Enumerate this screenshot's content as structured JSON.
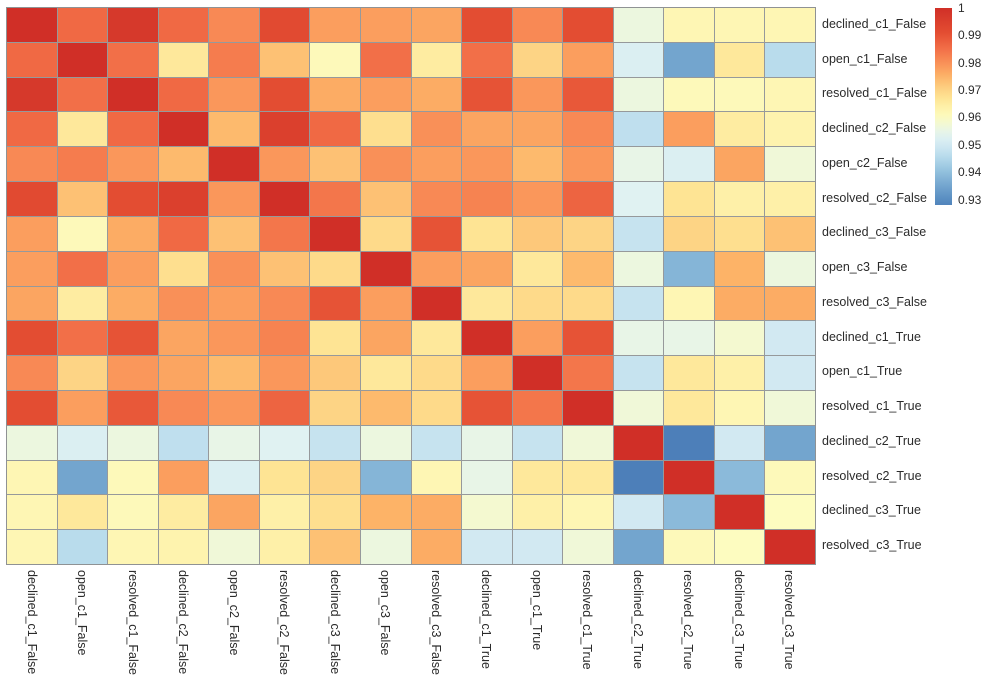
{
  "figure": {
    "background": "#ffffff",
    "grid_line_color": "#96999b",
    "label_color": "#2b2b2b"
  },
  "chart_data": {
    "type": "heatmap",
    "title": "",
    "xlabel": "",
    "ylabel": "",
    "categories": [
      "declined_c1_False",
      "open_c1_False",
      "resolved_c1_False",
      "declined_c2_False",
      "open_c2_False",
      "resolved_c2_False",
      "declined_c3_False",
      "open_c3_False",
      "resolved_c3_False",
      "declined_c1_True",
      "open_c1_True",
      "resolved_c1_True",
      "declined_c2_True",
      "resolved_c2_True",
      "declined_c3_True",
      "resolved_c3_True"
    ],
    "matrix": [
      [
        1.0,
        0.986,
        0.997,
        0.986,
        0.981,
        0.992,
        0.978,
        0.978,
        0.977,
        0.991,
        0.981,
        0.991,
        0.956,
        0.962,
        0.962,
        0.962
      ],
      [
        0.986,
        1.0,
        0.985,
        0.966,
        0.983,
        0.973,
        0.961,
        0.985,
        0.965,
        0.985,
        0.97,
        0.978,
        0.952,
        0.935,
        0.966,
        0.946
      ],
      [
        0.997,
        0.985,
        1.0,
        0.986,
        0.979,
        0.991,
        0.976,
        0.978,
        0.976,
        0.99,
        0.979,
        0.989,
        0.956,
        0.961,
        0.961,
        0.962
      ],
      [
        0.986,
        0.966,
        0.986,
        1.0,
        0.974,
        0.995,
        0.986,
        0.968,
        0.98,
        0.977,
        0.977,
        0.981,
        0.947,
        0.978,
        0.965,
        0.963
      ],
      [
        0.981,
        0.983,
        0.979,
        0.974,
        1.0,
        0.979,
        0.973,
        0.98,
        0.978,
        0.979,
        0.974,
        0.979,
        0.955,
        0.952,
        0.977,
        0.957
      ],
      [
        0.992,
        0.973,
        0.991,
        0.995,
        0.979,
        1.0,
        0.984,
        0.973,
        0.981,
        0.982,
        0.979,
        0.987,
        0.953,
        0.967,
        0.964,
        0.964
      ],
      [
        0.978,
        0.961,
        0.976,
        0.986,
        0.973,
        0.984,
        1.0,
        0.969,
        0.99,
        0.967,
        0.972,
        0.97,
        0.948,
        0.97,
        0.968,
        0.973
      ],
      [
        0.978,
        0.985,
        0.978,
        0.968,
        0.98,
        0.973,
        0.969,
        1.0,
        0.978,
        0.977,
        0.966,
        0.974,
        0.956,
        0.938,
        0.975,
        0.956
      ],
      [
        0.977,
        0.965,
        0.976,
        0.98,
        0.978,
        0.981,
        0.99,
        0.978,
        1.0,
        0.966,
        0.969,
        0.969,
        0.948,
        0.962,
        0.976,
        0.976
      ],
      [
        0.991,
        0.985,
        0.99,
        0.977,
        0.979,
        0.982,
        0.967,
        0.977,
        0.966,
        1.0,
        0.978,
        0.99,
        0.955,
        0.955,
        0.958,
        0.95
      ],
      [
        0.981,
        0.97,
        0.979,
        0.977,
        0.974,
        0.979,
        0.972,
        0.966,
        0.969,
        0.978,
        1.0,
        0.984,
        0.948,
        0.966,
        0.964,
        0.95
      ],
      [
        0.991,
        0.978,
        0.989,
        0.981,
        0.979,
        0.987,
        0.97,
        0.974,
        0.969,
        0.99,
        0.984,
        1.0,
        0.957,
        0.966,
        0.962,
        0.957
      ],
      [
        0.956,
        0.952,
        0.956,
        0.947,
        0.955,
        0.953,
        0.948,
        0.956,
        0.948,
        0.955,
        0.948,
        0.957,
        1.0,
        0.927,
        0.95,
        0.935
      ],
      [
        0.962,
        0.935,
        0.961,
        0.978,
        0.952,
        0.967,
        0.97,
        0.938,
        0.962,
        0.955,
        0.966,
        0.966,
        0.927,
        1.0,
        0.939,
        0.961
      ],
      [
        0.962,
        0.966,
        0.961,
        0.965,
        0.977,
        0.964,
        0.968,
        0.975,
        0.976,
        0.958,
        0.964,
        0.962,
        0.95,
        0.939,
        1.0,
        0.96
      ],
      [
        0.962,
        0.946,
        0.962,
        0.963,
        0.957,
        0.964,
        0.973,
        0.956,
        0.976,
        0.95,
        0.95,
        0.957,
        0.935,
        0.961,
        0.96,
        1.0
      ]
    ],
    "value_range": [
      0.928,
      1.0
    ],
    "colormap_stops": [
      [
        0.925,
        "#4575b4"
      ],
      [
        0.931,
        "#5d92c4"
      ],
      [
        0.936,
        "#79aad1"
      ],
      [
        0.941,
        "#97c5e0"
      ],
      [
        0.946,
        "#b9dcec"
      ],
      [
        0.95,
        "#d2e9f2"
      ],
      [
        0.9535,
        "#e2f3f2"
      ],
      [
        0.957,
        "#f0f8d8"
      ],
      [
        0.96,
        "#fdfcc0"
      ],
      [
        0.9635,
        "#fef2ab"
      ],
      [
        0.967,
        "#fee494"
      ],
      [
        0.971,
        "#fdcf80"
      ],
      [
        0.975,
        "#fdb367"
      ],
      [
        0.98,
        "#f99058"
      ],
      [
        0.9855,
        "#f16c46"
      ],
      [
        0.991,
        "#e34d32"
      ],
      [
        1.0,
        "#d02f27"
      ]
    ],
    "legend_position": "top-right",
    "grid": true,
    "colorbar": {
      "ticks": [
        "1",
        "0.99",
        "0.98",
        "0.97",
        "0.96",
        "0.95",
        "0.94",
        "0.93"
      ],
      "tick_values": [
        1,
        0.99,
        0.98,
        0.97,
        0.96,
        0.95,
        0.94,
        0.93
      ]
    }
  }
}
